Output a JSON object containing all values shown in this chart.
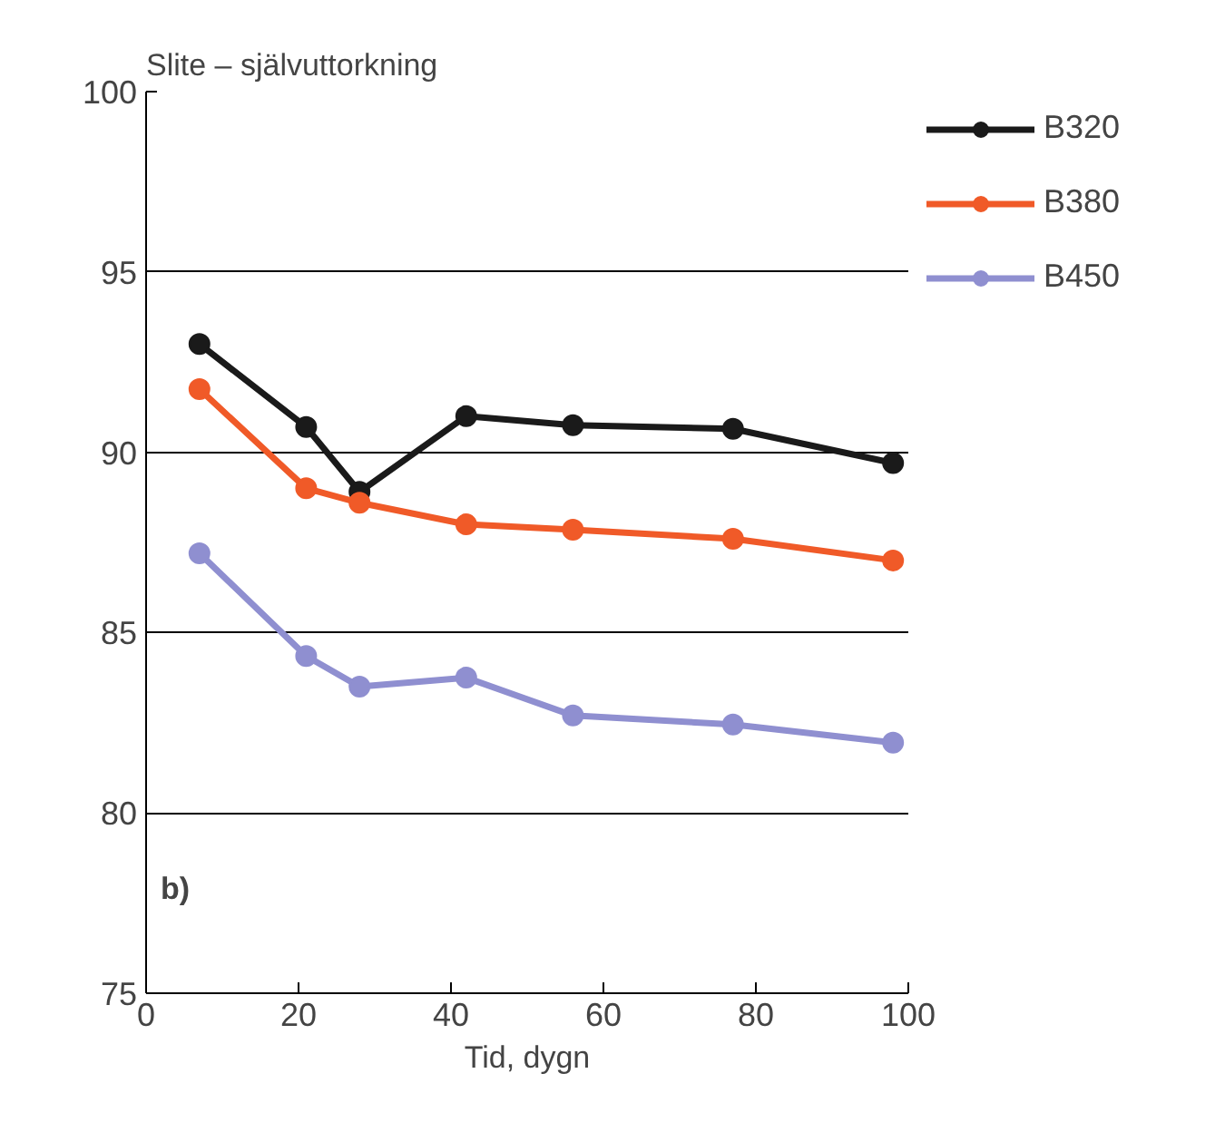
{
  "chart_data": {
    "type": "line",
    "title": "Slite – självuttorkning",
    "xlabel": "Tid, dygn",
    "annotations": [
      "b)"
    ],
    "x": [
      7,
      21,
      28,
      42,
      56,
      77,
      98
    ],
    "series": [
      {
        "name": "B320",
        "color": "#1a1a1a",
        "values": [
          93.0,
          90.7,
          88.9,
          91.0,
          90.75,
          90.65,
          89.7
        ]
      },
      {
        "name": "B380",
        "color": "#f05a28",
        "values": [
          91.75,
          89.0,
          88.6,
          88.0,
          87.85,
          87.6,
          87.0
        ]
      },
      {
        "name": "B450",
        "color": "#8f8fd0",
        "values": [
          87.2,
          84.35,
          83.5,
          83.75,
          82.7,
          82.45,
          81.95
        ]
      }
    ],
    "xlim": [
      0,
      100
    ],
    "xticks": [
      0,
      20,
      40,
      60,
      80,
      100
    ],
    "ylim": [
      75,
      100
    ],
    "yticks": [
      75,
      80,
      85,
      90,
      95,
      100
    ],
    "grid": "y",
    "legend": "top right",
    "marker": "circle",
    "line_style": "solid"
  }
}
